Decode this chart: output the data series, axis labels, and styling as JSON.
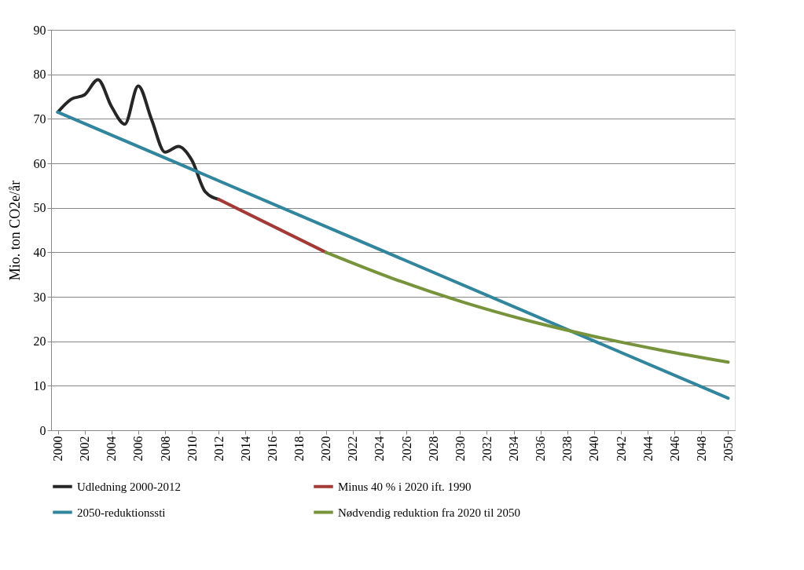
{
  "chart_data": {
    "type": "line",
    "ylabel": "Mio. ton CO2e/år",
    "xlim": [
      1999.5,
      2050.5
    ],
    "xticks": [
      2000,
      2002,
      2004,
      2006,
      2008,
      2010,
      2012,
      2014,
      2016,
      2018,
      2020,
      2022,
      2024,
      2026,
      2028,
      2030,
      2032,
      2034,
      2036,
      2038,
      2040,
      2042,
      2044,
      2046,
      2048,
      2050
    ],
    "ylim": [
      0,
      90
    ],
    "yticks": [
      0,
      10,
      20,
      30,
      40,
      50,
      60,
      70,
      80,
      90
    ],
    "grid": "y",
    "legend": "bottom",
    "line_style": "solid",
    "series": [
      {
        "name": "Udledning 2000-2012",
        "color": "#262626",
        "x": [
          2000,
          2001,
          2002,
          2003,
          2004,
          2005,
          2006,
          2007,
          2008,
          2009,
          2010,
          2011,
          2012
        ],
        "values": [
          71.5,
          74.4,
          75.4,
          78.8,
          72.8,
          68.8,
          77.4,
          69.8,
          62.5,
          63.8,
          60.7,
          53.6,
          51.9
        ]
      },
      {
        "name": "Minus 40 % i 2020 ift. 1990",
        "color": "#a33a36",
        "x": [
          2012,
          2020
        ],
        "values": [
          51.9,
          40
        ]
      },
      {
        "name": "2050-reduktionssti",
        "color": "#31859c",
        "x": [
          2000,
          2050
        ],
        "values": [
          71.5,
          7.2
        ]
      },
      {
        "name": "Nødvendig reduktion fra 2020 til 2050",
        "color": "#77933c",
        "x": [
          2020,
          2025,
          2030,
          2035,
          2040,
          2045,
          2050
        ],
        "values": [
          40,
          34.1,
          29.0,
          24.7,
          21.1,
          18.0,
          15.3
        ]
      }
    ]
  }
}
